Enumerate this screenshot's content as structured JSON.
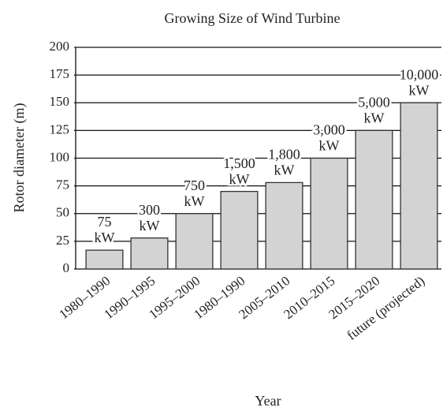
{
  "chart_data": {
    "type": "bar",
    "title": "Growing Size of Wind Turbine",
    "x_label": "Year",
    "y_label": "Rotor diameter (m)",
    "categories": [
      "1980–1990",
      "1990–1995",
      "1995–2000",
      "1980–1990",
      "2005–2010",
      "2010–2015",
      "2015–2020",
      "future (projected)"
    ],
    "values": [
      17,
      28,
      50,
      70,
      78,
      100,
      125,
      150
    ],
    "annotations": [
      [
        "75",
        "kW"
      ],
      [
        "300",
        "kW"
      ],
      [
        "750",
        "kW"
      ],
      [
        "1,500",
        "kW"
      ],
      [
        "1,800",
        "kW"
      ],
      [
        "3,000",
        "kW"
      ],
      [
        "5,000",
        "kW"
      ],
      [
        "10,000",
        "kW"
      ]
    ],
    "color": "#d3d3d3",
    "ylim": [
      0,
      200
    ],
    "yticks": [
      0,
      25,
      50,
      75,
      100,
      125,
      150,
      175,
      200
    ],
    "grid": true
  }
}
